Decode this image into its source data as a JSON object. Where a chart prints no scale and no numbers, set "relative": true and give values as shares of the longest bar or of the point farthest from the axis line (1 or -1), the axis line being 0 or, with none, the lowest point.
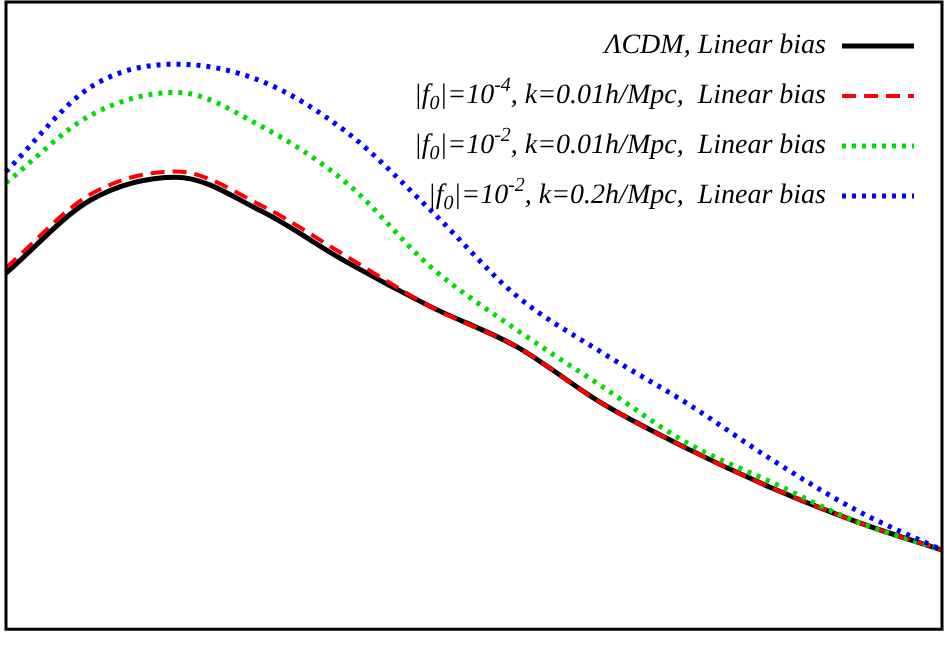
{
  "chart_data": {
    "type": "line",
    "relative": true,
    "legend": "top right",
    "marker": "none",
    "categories": [
      null,
      null,
      null,
      null,
      null,
      null,
      null,
      null,
      null,
      null,
      null,
      null
    ],
    "series": [
      {
        "name": "ΛCDM, Linear bias",
        "color": "#000000",
        "line_style": "solid",
        "values": [
          0.63,
          0.76,
          0.8,
          0.74,
          0.65,
          0.57,
          0.5,
          0.4,
          0.32,
          0.25,
          0.19,
          0.14
        ]
      },
      {
        "name": "|f$_{0}$|=10$^{-4}$, k=0.01h/Mpc,  Linear bias",
        "color": "#ff0000",
        "line_style": "dashed",
        "values": [
          0.64,
          0.77,
          0.81,
          0.75,
          0.66,
          0.57,
          0.5,
          0.4,
          0.32,
          0.25,
          0.19,
          0.14
        ]
      },
      {
        "name": "|f$_{0}$|=10$^{-2}$, k=0.01h/Mpc,  Linear bias",
        "color": "#00dd00",
        "line_style": "dotted",
        "values": [
          0.79,
          0.91,
          0.95,
          0.89,
          0.79,
          0.64,
          0.53,
          0.43,
          0.33,
          0.26,
          0.19,
          0.14
        ]
      },
      {
        "name": "|f$_{0}$|=10$^{-2}$, k=0.2h/Mpc,  Linear bias",
        "color": "#0000ff",
        "line_style": "dotted",
        "values": [
          0.81,
          0.96,
          1,
          0.97,
          0.88,
          0.74,
          0.59,
          0.49,
          0.4,
          0.3,
          0.21,
          0.14
        ]
      }
    ]
  }
}
